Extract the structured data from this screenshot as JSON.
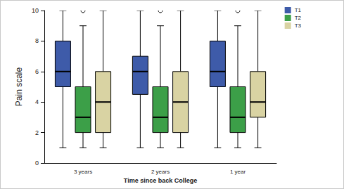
{
  "chart_data": {
    "type": "boxplot",
    "x_label": "Time since back College",
    "y_label": "Pain scale",
    "categories": [
      "3 years",
      "2 years",
      "1 year"
    ],
    "ylim": [
      0,
      10
    ],
    "yticks": [
      0,
      2,
      4,
      6,
      8,
      10
    ],
    "grid": false,
    "legend": "top-right",
    "series": [
      {
        "name": "T1",
        "color": "#3e5ba9",
        "values": [
          [
            1,
            5,
            6,
            8,
            10
          ],
          [
            1,
            4.5,
            6,
            7,
            10
          ],
          [
            1,
            5,
            6,
            8,
            10
          ]
        ],
        "outliers": [
          [],
          [],
          []
        ]
      },
      {
        "name": "T2",
        "color": "#3c9f48",
        "values": [
          [
            1,
            2,
            3,
            5,
            9
          ],
          [
            1,
            2,
            3,
            5,
            9
          ],
          [
            1,
            2,
            3,
            5,
            9
          ]
        ],
        "outliers": [
          [
            10
          ],
          [
            10
          ],
          [
            10
          ]
        ]
      },
      {
        "name": "T3",
        "color": "#d9d3a3",
        "values": [
          [
            1,
            2,
            4,
            6,
            10
          ],
          [
            1,
            2,
            4,
            6,
            10
          ],
          [
            1,
            3,
            4,
            6,
            10
          ]
        ],
        "outliers": [
          [],
          [],
          []
        ]
      }
    ]
  }
}
